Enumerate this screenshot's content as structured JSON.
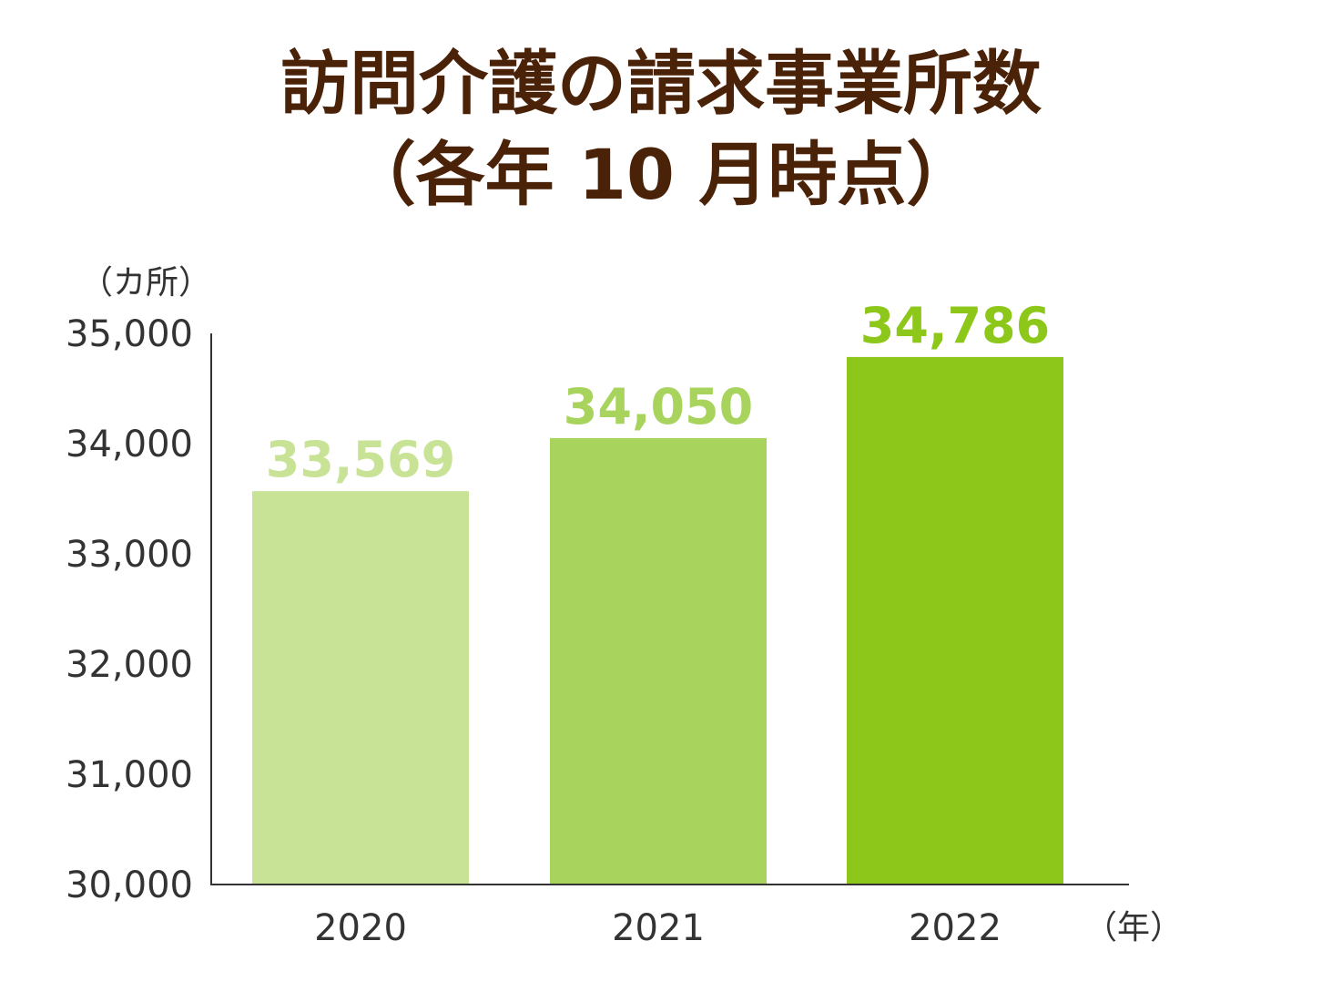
{
  "chart_data": {
    "type": "bar",
    "title_line1": "訪問介護の請求事業所数",
    "title_line2": "（各年 10 月時点）",
    "y_unit_label": "（カ所）",
    "x_unit_label": "（年）",
    "categories": [
      "2020",
      "2021",
      "2022"
    ],
    "values": [
      33569,
      34050,
      34786
    ],
    "data_labels": [
      "33,569",
      "34,050",
      "34,786"
    ],
    "y_ticks": [
      "30,000",
      "31,000",
      "32,000",
      "33,000",
      "34,000",
      "35,000"
    ],
    "y_tick_values": [
      30000,
      31000,
      32000,
      33000,
      34000,
      35000
    ],
    "ylim": [
      30000,
      35000
    ],
    "grid": false,
    "legend": "none",
    "bar_colors": [
      "#c8e396",
      "#a8d45e",
      "#8cc71a"
    ],
    "label_colors": [
      "#c8e396",
      "#a8d45e",
      "#8cc71a"
    ],
    "axis_color": "#333333",
    "title_color": "#4a2208"
  }
}
